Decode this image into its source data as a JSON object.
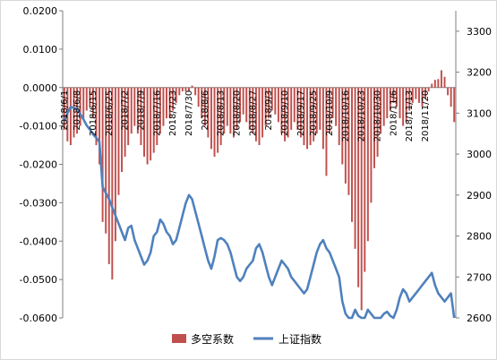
{
  "chart_data": {
    "type": "bar+line",
    "title": "",
    "legend_position": "bottom",
    "colors": {
      "bars": "#c0504d",
      "line": "#4f81bd",
      "axis": "#7f7f7f"
    },
    "left_axis": {
      "ylim": [
        -0.06,
        0.02
      ],
      "tick_values": [
        -0.06,
        -0.05,
        -0.04,
        -0.03,
        -0.02,
        -0.01,
        0,
        0.01,
        0.02
      ],
      "tick_labels": [
        "-0.0600",
        "-0.0500",
        "-0.0400",
        "-0.0300",
        "-0.0200",
        "-0.0100",
        "0.0000",
        "0.0100",
        "0.0200"
      ]
    },
    "right_axis": {
      "ylim": [
        2600,
        3350
      ],
      "tick_values": [
        2600,
        2700,
        2800,
        2900,
        3000,
        3100,
        3200,
        3300
      ],
      "tick_labels": [
        "2600",
        "2700",
        "2800",
        "2900",
        "3000",
        "3100",
        "3200",
        "3300"
      ]
    },
    "x_tick_labels": [
      {
        "index": 0,
        "label": "2018/6/1"
      },
      {
        "index": 4,
        "label": "2018/6/8"
      },
      {
        "index": 9,
        "label": "2018/6/15"
      },
      {
        "index": 14,
        "label": "2018/6/25"
      },
      {
        "index": 19,
        "label": "2018/7/2"
      },
      {
        "index": 24,
        "label": "2018/7/9"
      },
      {
        "index": 29,
        "label": "2018/7/16"
      },
      {
        "index": 34,
        "label": "2018/7/23"
      },
      {
        "index": 39,
        "label": "2018/7/30"
      },
      {
        "index": 44,
        "label": "2018/8/6"
      },
      {
        "index": 49,
        "label": "2018/8/13"
      },
      {
        "index": 54,
        "label": "2018/8/20"
      },
      {
        "index": 59,
        "label": "2018/8/27"
      },
      {
        "index": 64,
        "label": "2018/9/3"
      },
      {
        "index": 69,
        "label": "2018/9/10"
      },
      {
        "index": 74,
        "label": "2018/9/17"
      },
      {
        "index": 78,
        "label": "2018/9/25"
      },
      {
        "index": 83,
        "label": "2018/10/9"
      },
      {
        "index": 88,
        "label": "2018/10/16"
      },
      {
        "index": 93,
        "label": "2018/10/23"
      },
      {
        "index": 98,
        "label": "2018/10/30"
      },
      {
        "index": 103,
        "label": "2018/11/6"
      },
      {
        "index": 108,
        "label": "2018/11/13"
      },
      {
        "index": 113,
        "label": "2018/11/20"
      }
    ],
    "series": [
      {
        "name": "多空系数",
        "type": "bar",
        "axis": "left",
        "values": [
          -0.011,
          -0.014,
          -0.015,
          -0.013,
          -0.012,
          -0.01,
          -0.008,
          -0.006,
          -0.005,
          -0.008,
          -0.015,
          -0.02,
          -0.035,
          -0.038,
          -0.046,
          -0.05,
          -0.04,
          -0.028,
          -0.022,
          -0.018,
          -0.015,
          -0.012,
          -0.01,
          -0.012,
          -0.015,
          -0.018,
          -0.02,
          -0.019,
          -0.017,
          -0.015,
          -0.012,
          -0.01,
          -0.008,
          -0.008,
          -0.006,
          -0.004,
          -0.002,
          -0.001,
          -0.001,
          -0.001,
          0.0005,
          -0.002,
          -0.005,
          -0.008,
          -0.01,
          -0.013,
          -0.016,
          -0.018,
          -0.017,
          -0.015,
          -0.012,
          -0.01,
          -0.012,
          -0.013,
          -0.011,
          -0.009,
          -0.007,
          -0.009,
          -0.011,
          -0.012,
          -0.014,
          -0.015,
          -0.013,
          -0.01,
          -0.008,
          -0.006,
          -0.007,
          -0.009,
          -0.012,
          -0.014,
          -0.013,
          -0.011,
          -0.009,
          -0.011,
          -0.013,
          -0.015,
          -0.016,
          -0.015,
          -0.014,
          -0.012,
          -0.011,
          -0.016,
          -0.023,
          -0.012,
          -0.008,
          -0.01,
          -0.015,
          -0.02,
          -0.025,
          -0.028,
          -0.035,
          -0.042,
          -0.052,
          -0.058,
          -0.048,
          -0.04,
          -0.03,
          -0.021,
          -0.018,
          -0.012,
          -0.01,
          -0.008,
          -0.006,
          -0.004,
          -0.005,
          -0.008,
          -0.01,
          -0.009,
          -0.006,
          -0.004,
          -0.003,
          -0.004,
          -0.005,
          -0.003,
          -0.001,
          0.001,
          0.002,
          0.0022,
          0.0045,
          0.0028,
          -0.002,
          -0.005,
          -0.009
        ]
      },
      {
        "name": "上证指数",
        "type": "line",
        "axis": "right",
        "values": [
          3080,
          3100,
          3115,
          3113,
          3110,
          3098,
          3085,
          3070,
          3060,
          3048,
          3040,
          3030,
          2920,
          2905,
          2890,
          2870,
          2850,
          2830,
          2810,
          2790,
          2820,
          2825,
          2790,
          2770,
          2750,
          2730,
          2740,
          2760,
          2800,
          2810,
          2840,
          2830,
          2810,
          2800,
          2780,
          2790,
          2820,
          2850,
          2880,
          2900,
          2890,
          2860,
          2830,
          2800,
          2770,
          2740,
          2720,
          2750,
          2790,
          2795,
          2790,
          2780,
          2760,
          2730,
          2700,
          2690,
          2700,
          2720,
          2730,
          2740,
          2770,
          2780,
          2760,
          2730,
          2700,
          2680,
          2700,
          2720,
          2740,
          2730,
          2720,
          2700,
          2690,
          2680,
          2670,
          2660,
          2670,
          2700,
          2730,
          2760,
          2780,
          2790,
          2770,
          2760,
          2740,
          2720,
          2700,
          2640,
          2610,
          2595,
          2600,
          2620,
          2605,
          2590,
          2600,
          2620,
          2610,
          2600,
          2598,
          2600,
          2610,
          2615,
          2605,
          2590,
          2620,
          2650,
          2670,
          2660,
          2640,
          2650,
          2660,
          2670,
          2680,
          2690,
          2700,
          2710,
          2680,
          2660,
          2650,
          2640,
          2650,
          2660,
          2600
        ]
      }
    ]
  }
}
